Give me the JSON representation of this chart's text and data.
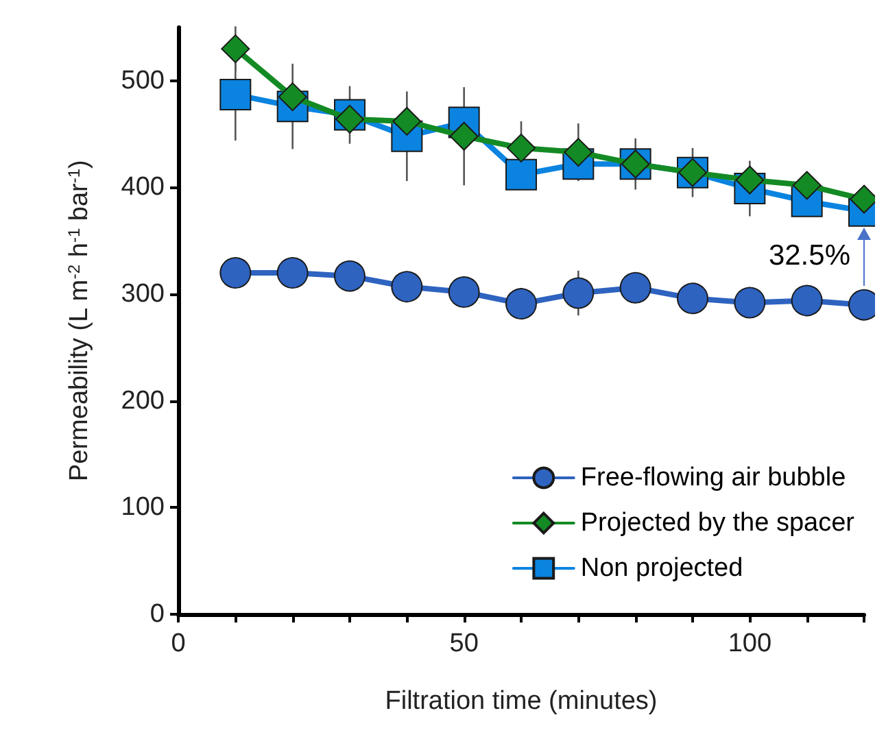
{
  "chart_data": {
    "type": "line",
    "xlabel": "Filtration time (minutes)",
    "ylabel": "Permeability (L m$^{-2}$ h$^{-1}$ bar$^{-1}$)",
    "xlim": [
      0,
      120
    ],
    "xticks": [
      0,
      {
        "value": 10,
        "label": null
      },
      {
        "value": 20,
        "label": null
      },
      {
        "value": 30,
        "label": null
      },
      {
        "value": 40,
        "label": null
      },
      50,
      {
        "value": 60,
        "label": null
      },
      {
        "value": 70,
        "label": null
      },
      {
        "value": 80,
        "label": null
      },
      {
        "value": 90,
        "label": null
      },
      100,
      {
        "value": 110,
        "label": null
      },
      {
        "value": 120,
        "label": null
      }
    ],
    "ylim": [
      0,
      550
    ],
    "yticks": [
      0,
      100,
      200,
      300,
      400,
      500
    ],
    "grid": false,
    "legend": "bottom right",
    "x": [
      10,
      20,
      30,
      40,
      50,
      60,
      70,
      80,
      90,
      100,
      110,
      120
    ],
    "series": [
      {
        "name": "Free-flowing air bubble",
        "color": "#2e63c0",
        "marker": "circle",
        "values": [
          320,
          320,
          317,
          307,
          302,
          291,
          301,
          306,
          296,
          292,
          294,
          290
        ],
        "errors": [
          null,
          null,
          null,
          null,
          null,
          null,
          21,
          null,
          null,
          null,
          null,
          null
        ]
      },
      {
        "name": "Projected by the spacer",
        "color": "#138a24",
        "marker": "diamond",
        "values": [
          530,
          485,
          464,
          462,
          448,
          437,
          433,
          422,
          414,
          407,
          402,
          389
        ],
        "errors": [
          21,
          null,
          null,
          null,
          46,
          25,
          27,
          null,
          null,
          null,
          null,
          null
        ]
      },
      {
        "name": "Non projected",
        "color": "#0a84e0",
        "marker": "square",
        "values": [
          487,
          476,
          468,
          448,
          461,
          412,
          422,
          422,
          414,
          399,
          387,
          378
        ],
        "errors": [
          43,
          40,
          27,
          42,
          null,
          null,
          null,
          24,
          23,
          26,
          null,
          null
        ]
      }
    ],
    "annotations": [
      "32.5%"
    ]
  }
}
